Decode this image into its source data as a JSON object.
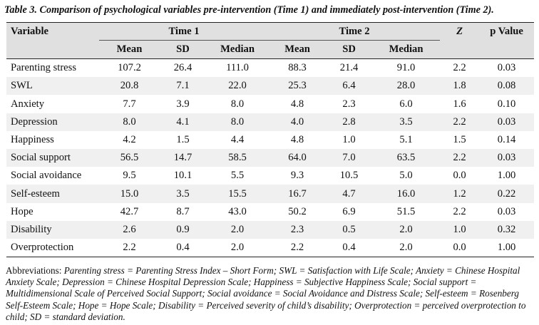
{
  "caption": "Table 3. Comparison of psychological variables pre-intervention (Time 1) and immediately post-intervention (Time 2).",
  "headers": {
    "variable": "Variable",
    "time1": "Time 1",
    "time2": "Time 2",
    "z": "Z",
    "p": "p Value",
    "mean": "Mean",
    "sd": "SD",
    "median": "Median"
  },
  "rows": [
    {
      "variable": "Parenting stress",
      "t1_mean": "107.2",
      "t1_sd": "26.4",
      "t1_median": "111.0",
      "t2_mean": "88.3",
      "t2_sd": "21.4",
      "t2_median": "91.0",
      "z": "2.2",
      "p": "0.03"
    },
    {
      "variable": "SWL",
      "t1_mean": "20.8",
      "t1_sd": "7.1",
      "t1_median": "22.0",
      "t2_mean": "25.3",
      "t2_sd": "6.4",
      "t2_median": "28.0",
      "z": "1.8",
      "p": "0.08"
    },
    {
      "variable": "Anxiety",
      "t1_mean": "7.7",
      "t1_sd": "3.9",
      "t1_median": "8.0",
      "t2_mean": "4.8",
      "t2_sd": "2.3",
      "t2_median": "6.0",
      "z": "1.6",
      "p": "0.10"
    },
    {
      "variable": "Depression",
      "t1_mean": "8.0",
      "t1_sd": "4.1",
      "t1_median": "8.0",
      "t2_mean": "4.0",
      "t2_sd": "2.8",
      "t2_median": "3.5",
      "z": "2.2",
      "p": "0.03"
    },
    {
      "variable": "Happiness",
      "t1_mean": "4.2",
      "t1_sd": "1.5",
      "t1_median": "4.4",
      "t2_mean": "4.8",
      "t2_sd": "1.0",
      "t2_median": "5.1",
      "z": "1.5",
      "p": "0.14"
    },
    {
      "variable": "Social support",
      "t1_mean": "56.5",
      "t1_sd": "14.7",
      "t1_median": "58.5",
      "t2_mean": "64.0",
      "t2_sd": "7.0",
      "t2_median": "63.5",
      "z": "2.2",
      "p": "0.03"
    },
    {
      "variable": "Social avoidance",
      "t1_mean": "9.5",
      "t1_sd": "10.1",
      "t1_median": "5.5",
      "t2_mean": "9.3",
      "t2_sd": "10.5",
      "t2_median": "5.0",
      "z": "0.0",
      "p": "1.00"
    },
    {
      "variable": "Self-esteem",
      "t1_mean": "15.0",
      "t1_sd": "3.5",
      "t1_median": "15.5",
      "t2_mean": "16.7",
      "t2_sd": "4.7",
      "t2_median": "16.0",
      "z": "1.2",
      "p": "0.22"
    },
    {
      "variable": "Hope",
      "t1_mean": "42.7",
      "t1_sd": "8.7",
      "t1_median": "43.0",
      "t2_mean": "50.2",
      "t2_sd": "6.9",
      "t2_median": "51.5",
      "z": "2.2",
      "p": "0.03"
    },
    {
      "variable": "Disability",
      "t1_mean": "2.6",
      "t1_sd": "0.9",
      "t1_median": "2.0",
      "t2_mean": "2.3",
      "t2_sd": "0.5",
      "t2_median": "2.0",
      "z": "1.0",
      "p": "0.32"
    },
    {
      "variable": "Overprotection",
      "t1_mean": "2.2",
      "t1_sd": "0.4",
      "t1_median": "2.0",
      "t2_mean": "2.2",
      "t2_sd": "0.4",
      "t2_median": "2.0",
      "z": "0.0",
      "p": "1.00"
    }
  ],
  "footnote": {
    "label": "Abbreviations:",
    "text": "Parenting stress = Parenting Stress Index – Short Form; SWL = Satisfaction with Life Scale; Anxiety = Chinese Hospital Anxiety Scale; Depression = Chinese Hospital Depression Scale; Happiness = Subjective Happiness Scale; Social support = Multidimensional Scale of Perceived Social Support; Social avoidance = Social Avoidance and Distress Scale; Self-esteem = Rosenberg Self-Esteem Scale; Hope = Hope Scale; Disability = Perceived severity of child’s disability; Overprotection = perceived overprotection to child; SD = standard deviation."
  }
}
